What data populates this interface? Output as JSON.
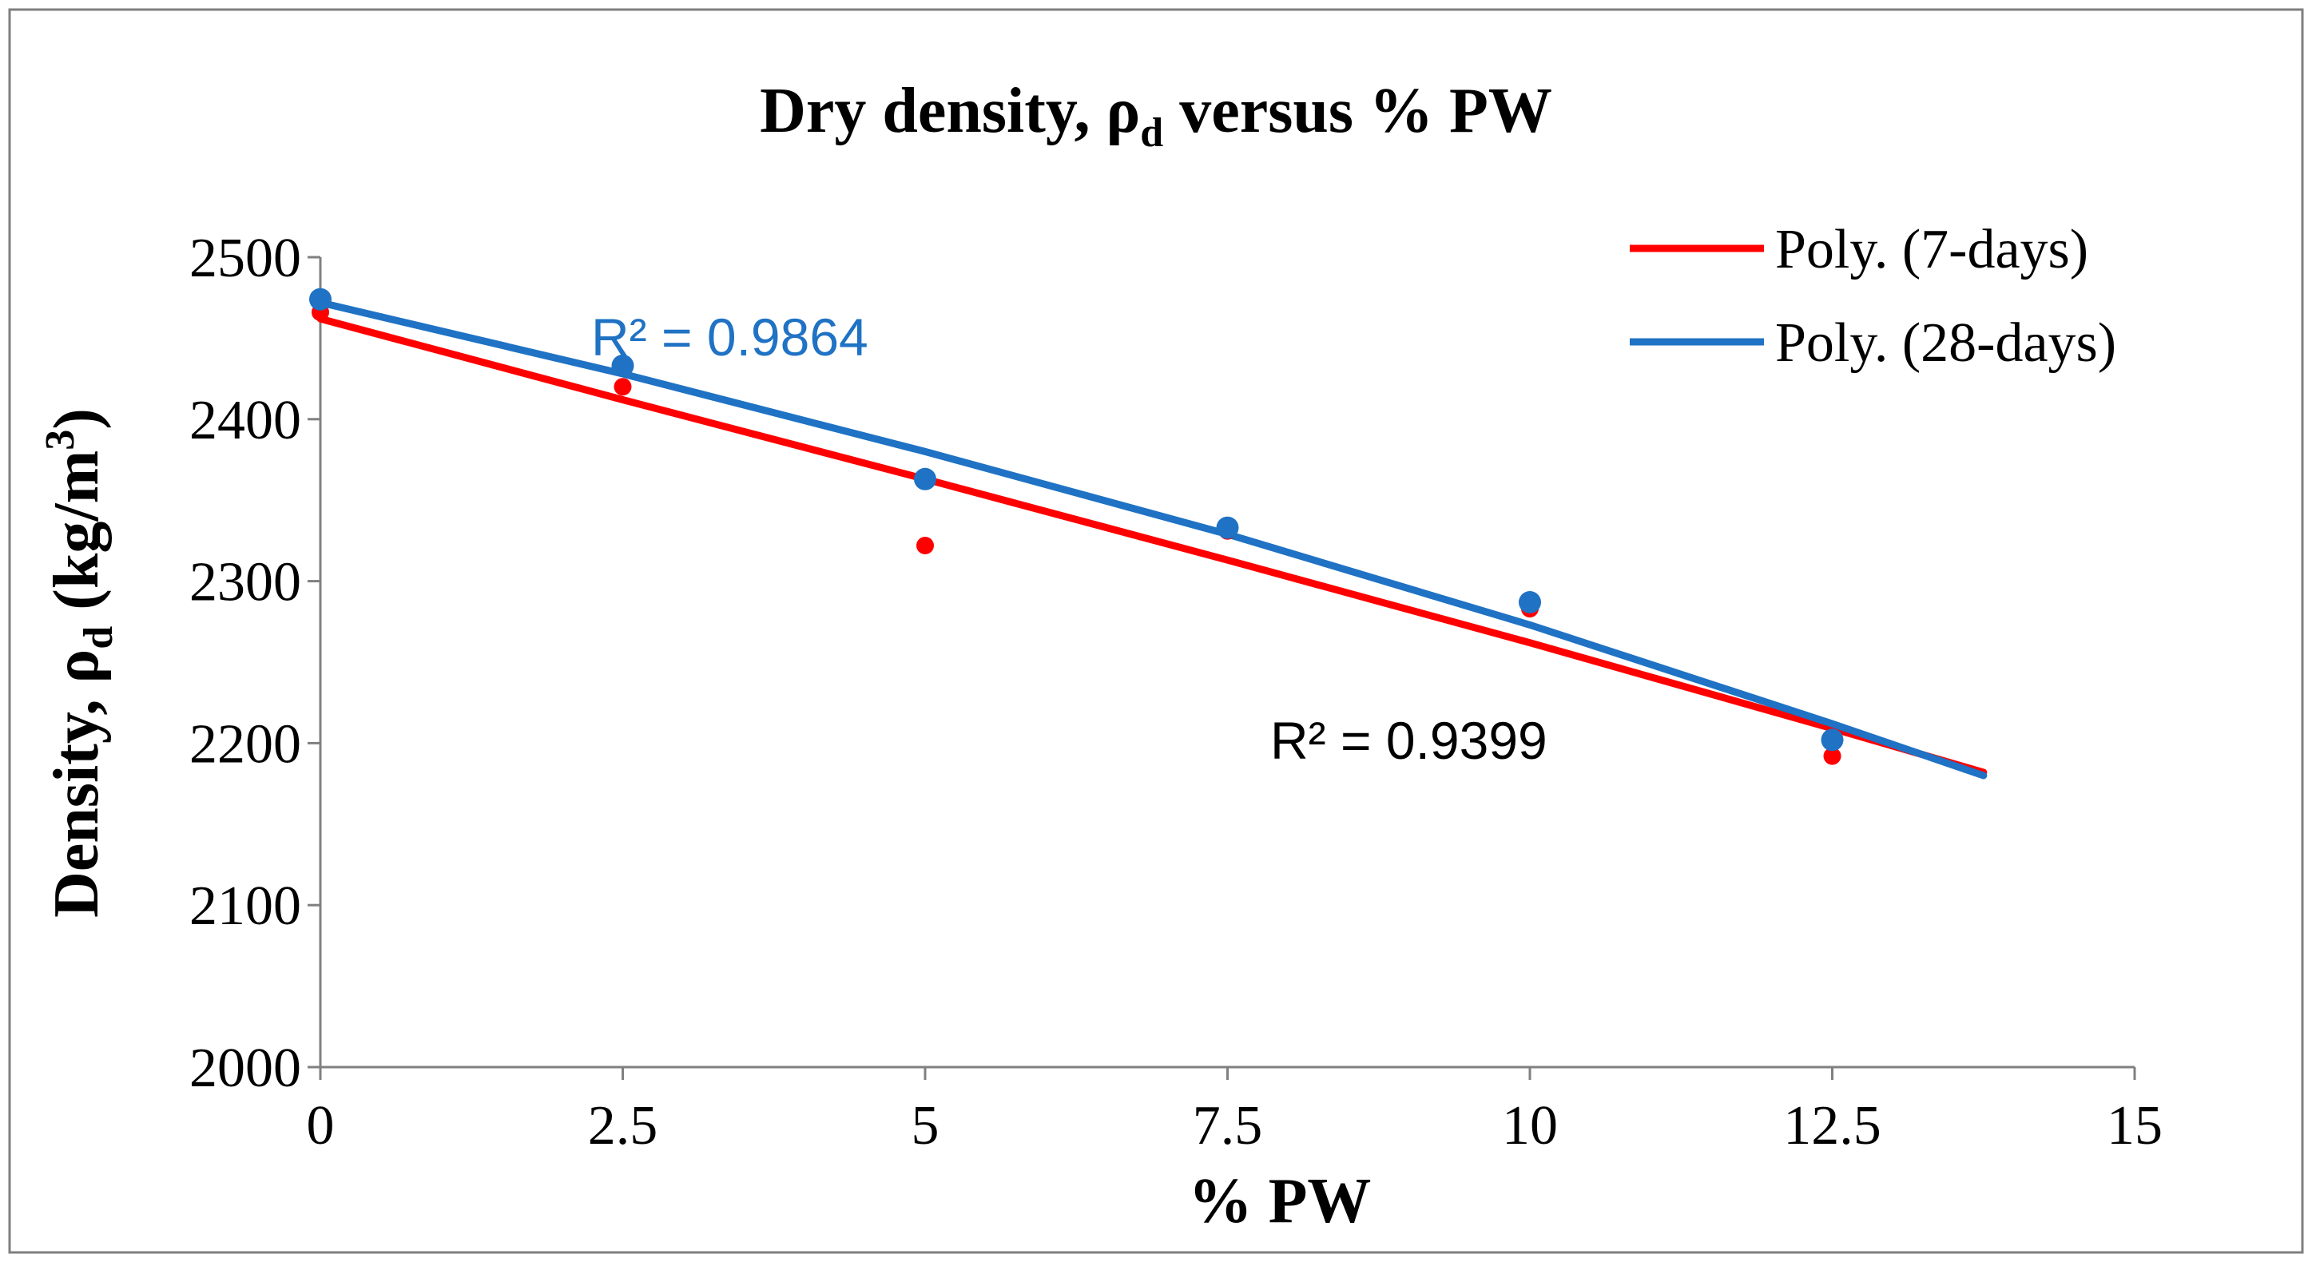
{
  "chart_data": {
    "type": "scatter",
    "title": {
      "prefix": "Dry density, ",
      "symbol": "ρ",
      "subscript": "d",
      "suffix": " versus % PW"
    },
    "xlabel": "% PW",
    "ylabel": {
      "prefix": "Density, ",
      "symbol": "ρ",
      "subscript": "d",
      "unit_open": " (kg/m",
      "superscript": "3",
      "unit_close": ")"
    },
    "xlim": [
      0,
      15
    ],
    "ylim": [
      2000,
      2500
    ],
    "x_ticks": [
      "0",
      "2.5",
      "5",
      "7.5",
      "10",
      "12.5",
      "15"
    ],
    "y_ticks": [
      "2000",
      "2100",
      "2200",
      "2300",
      "2400",
      "2500"
    ],
    "grid": false,
    "legend_position": "top-right",
    "legend": [
      {
        "label": "Poly. (7-days)",
        "color": "#ff0000"
      },
      {
        "label": "Poly. (28-days)",
        "color": "#1f72c4"
      }
    ],
    "series": [
      {
        "name": "7-days",
        "color": "#ff0000",
        "x": [
          0,
          2.5,
          5,
          7.5,
          10,
          12.5
        ],
        "y": [
          2466,
          2420,
          2322,
          2331,
          2283,
          2192
        ],
        "trend_points": [
          [
            0,
            2462
          ],
          [
            2.5,
            2412
          ],
          [
            5,
            2363
          ],
          [
            7.5,
            2313
          ],
          [
            10,
            2262
          ],
          [
            12.5,
            2209
          ],
          [
            13.75,
            2182
          ]
        ],
        "r2": "R² = 0.9399"
      },
      {
        "name": "28-days",
        "color": "#1f72c4",
        "x": [
          0,
          2.5,
          5,
          7.5,
          10,
          12.5
        ],
        "y": [
          2474,
          2433,
          2363,
          2333,
          2287,
          2202
        ],
        "trend_points": [
          [
            0,
            2472
          ],
          [
            2.5,
            2428
          ],
          [
            5,
            2380
          ],
          [
            7.5,
            2329
          ],
          [
            10,
            2273
          ],
          [
            12.5,
            2212
          ],
          [
            13.75,
            2180
          ]
        ],
        "r2": "R² = 0.9864"
      }
    ]
  }
}
